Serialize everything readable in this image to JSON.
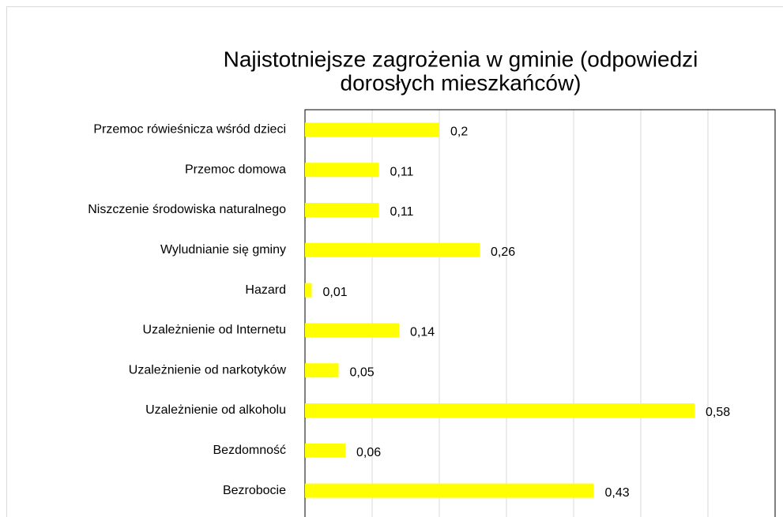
{
  "chart_data": {
    "type": "bar",
    "orientation": "horizontal",
    "title": [
      "Najistotniejsze zagrożenia w gminie (odpowiedzi",
      "dorosłych mieszkańców)"
    ],
    "categories": [
      "Przemoc rówieśnicza wśród dzieci",
      "Przemoc domowa",
      "Niszczenie środowiska naturalnego",
      "Wyludnianie się gminy",
      "Hazard",
      "Uzależnienie od Internetu",
      "Uzależnienie od narkotyków",
      "Uzależnienie od alkoholu",
      "Bezdomność",
      "Bezrobocie"
    ],
    "values": [
      0.2,
      0.11,
      0.11,
      0.26,
      0.01,
      0.14,
      0.05,
      0.58,
      0.06,
      0.43
    ],
    "value_labels": [
      "0,2",
      "0,11",
      "0,11",
      "0,26",
      "0,01",
      "0,14",
      "0,05",
      "0,58",
      "0,06",
      "0,43"
    ],
    "color": "#ffff00",
    "xlim": [
      0,
      0.7
    ],
    "xticks": [
      0,
      0.1,
      0.2,
      0.3,
      0.4,
      0.5,
      0.6,
      0.7
    ],
    "grid": true
  }
}
